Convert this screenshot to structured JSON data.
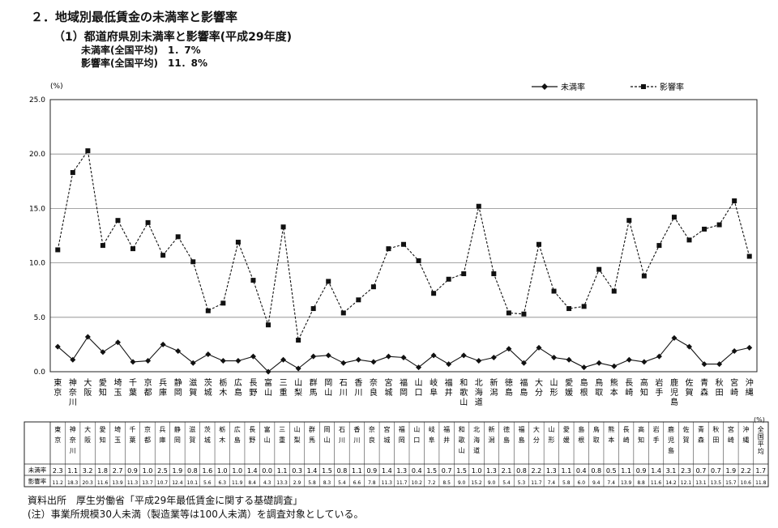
{
  "header": {
    "title": "２．地域別最低賃金の未満率と影響率",
    "subtitle": "（1）都道府県別未満率と影響率(平成29年度)",
    "avg_miman": "未満率(全国平均)　1．7%",
    "avg_eikyo": "影響率(全国平均)　11．8%"
  },
  "footer": {
    "source": "資料出所　厚生労働省「平成29年最低賃金に関する基礎調査」",
    "note": "(注）事業所規模30人未満（製造業等は100人未満）を調査対象としている。"
  },
  "table": {
    "unit": "(%)",
    "row_labels": [
      "未満率",
      "影響率"
    ]
  },
  "chart_data": {
    "type": "line",
    "unit_label": "(%)",
    "ylim": [
      0,
      25
    ],
    "yticks": [
      "0.0",
      "5.0",
      "10.0",
      "15.0",
      "20.0",
      "25.0"
    ],
    "grid": true,
    "legend_position": "top-right",
    "categories": [
      "東京",
      "神奈川",
      "大阪",
      "愛知",
      "埼玉",
      "千葉",
      "京都",
      "兵庫",
      "静岡",
      "滋賀",
      "茨城",
      "栃木",
      "広島",
      "長野",
      "富山",
      "三重",
      "山梨",
      "群馬",
      "岡山",
      "石川",
      "香川",
      "奈良",
      "宮城",
      "福岡",
      "山口",
      "岐阜",
      "福井",
      "和歌山",
      "北海道",
      "新潟",
      "徳島",
      "福島",
      "大分",
      "山形",
      "愛媛",
      "島根",
      "鳥取",
      "熊本",
      "長崎",
      "高知",
      "岩手",
      "鹿児島",
      "佐賀",
      "青森",
      "秋田",
      "宮崎",
      "沖縄",
      "全国平均"
    ],
    "series": [
      {
        "name": "未満率",
        "marker": "diamond",
        "style": "solid",
        "values": [
          2.3,
          1.1,
          3.2,
          1.8,
          2.7,
          0.9,
          1.0,
          2.5,
          1.9,
          0.8,
          1.6,
          1.0,
          1.0,
          1.4,
          0.0,
          1.1,
          0.3,
          1.4,
          1.5,
          0.8,
          1.1,
          0.9,
          1.4,
          1.3,
          0.4,
          1.5,
          0.7,
          1.5,
          1.0,
          1.3,
          2.1,
          0.8,
          2.2,
          1.3,
          1.1,
          0.4,
          0.8,
          0.5,
          1.1,
          0.9,
          1.4,
          3.1,
          2.3,
          0.7,
          0.7,
          1.9,
          2.2,
          1.7
        ]
      },
      {
        "name": "影響率",
        "marker": "square",
        "style": "dashed",
        "values": [
          11.2,
          18.3,
          20.3,
          11.6,
          13.9,
          11.3,
          13.7,
          10.7,
          12.4,
          10.1,
          5.6,
          6.3,
          11.9,
          8.4,
          4.3,
          13.3,
          2.9,
          5.8,
          8.3,
          5.4,
          6.6,
          7.8,
          11.3,
          11.7,
          10.2,
          7.2,
          8.5,
          9.0,
          15.2,
          9.0,
          5.4,
          5.3,
          11.7,
          7.4,
          5.8,
          6.0,
          9.4,
          7.4,
          13.9,
          8.8,
          11.6,
          14.2,
          12.1,
          13.1,
          13.5,
          15.7,
          10.6,
          11.8
        ]
      }
    ]
  }
}
